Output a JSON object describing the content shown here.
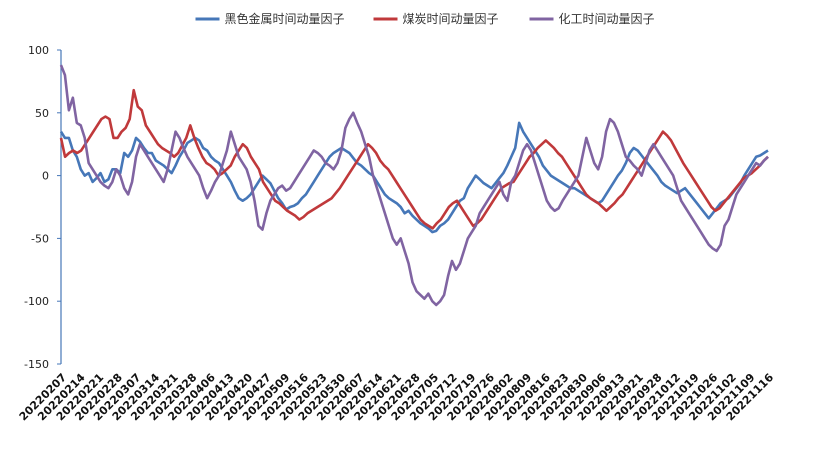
{
  "chart_data": {
    "type": "line",
    "title": "",
    "xlabel": "",
    "ylabel": "",
    "ylim": [
      -150,
      100
    ],
    "yticks": [
      -150,
      -100,
      -50,
      0,
      50,
      100
    ],
    "grid": false,
    "legend_position": "top-center",
    "x_tick_labels": [
      "20220207",
      "20220214",
      "20220221",
      "20220228",
      "20220307",
      "20220314",
      "20220321",
      "20220328",
      "20220406",
      "20220413",
      "20220420",
      "20220427",
      "20220509",
      "20220516",
      "20220523",
      "20220530",
      "20220607",
      "20220614",
      "20220621",
      "20220628",
      "20220705",
      "20220712",
      "20220719",
      "20220726",
      "20220802",
      "20220809",
      "20220816",
      "20220823",
      "20220830",
      "20220906",
      "20220913",
      "20220921",
      "20220928",
      "20221012",
      "20221019",
      "20221026",
      "20221102",
      "20221109",
      "20221116"
    ],
    "series": [
      {
        "name": "黑色金属时间动量因子",
        "color": "#4677b8",
        "values": [
          35,
          30,
          30,
          20,
          15,
          5,
          0,
          2,
          -5,
          -2,
          2,
          -5,
          -3,
          5,
          5,
          2,
          18,
          15,
          20,
          30,
          27,
          22,
          18,
          18,
          12,
          10,
          8,
          5,
          2,
          8,
          15,
          20,
          26,
          28,
          30,
          28,
          22,
          20,
          15,
          12,
          10,
          5,
          0,
          -5,
          -12,
          -18,
          -20,
          -18,
          -15,
          -10,
          -5,
          0,
          -3,
          -6,
          -12,
          -18,
          -22,
          -27,
          -25,
          -24,
          -22,
          -18,
          -15,
          -10,
          -5,
          0,
          5,
          10,
          15,
          18,
          20,
          22,
          20,
          18,
          14,
          10,
          8,
          5,
          2,
          0,
          -5,
          -10,
          -15,
          -18,
          -20,
          -22,
          -25,
          -30,
          -28,
          -32,
          -35,
          -38,
          -40,
          -42,
          -45,
          -44,
          -40,
          -38,
          -35,
          -30,
          -25,
          -20,
          -18,
          -10,
          -5,
          0,
          -3,
          -6,
          -8,
          -10,
          -6,
          -2,
          2,
          8,
          15,
          22,
          42,
          35,
          30,
          25,
          20,
          15,
          8,
          4,
          0,
          -2,
          -4,
          -6,
          -8,
          -10,
          -10,
          -12,
          -14,
          -16,
          -18,
          -20,
          -22,
          -20,
          -15,
          -10,
          -5,
          0,
          4,
          10,
          18,
          22,
          20,
          16,
          12,
          8,
          4,
          0,
          -5,
          -8,
          -10,
          -12,
          -14,
          -12,
          -10,
          -14,
          -18,
          -22,
          -26,
          -30,
          -34,
          -30,
          -26,
          -22,
          -20,
          -18,
          -14,
          -10,
          -6,
          0,
          5,
          10,
          15,
          16,
          18,
          20
        ]
      },
      {
        "name": "煤炭时间动量因子",
        "color": "#c0393b",
        "values": [
          30,
          15,
          18,
          20,
          18,
          20,
          25,
          30,
          35,
          40,
          45,
          47,
          45,
          30,
          30,
          35,
          38,
          45,
          68,
          55,
          52,
          40,
          35,
          30,
          25,
          22,
          20,
          18,
          15,
          18,
          24,
          30,
          40,
          30,
          22,
          15,
          10,
          8,
          5,
          0,
          2,
          5,
          8,
          15,
          20,
          25,
          22,
          15,
          10,
          5,
          -5,
          -10,
          -15,
          -20,
          -22,
          -25,
          -28,
          -30,
          -32,
          -35,
          -33,
          -30,
          -28,
          -26,
          -24,
          -22,
          -20,
          -18,
          -14,
          -10,
          -5,
          0,
          5,
          10,
          15,
          20,
          25,
          22,
          18,
          12,
          8,
          5,
          0,
          -5,
          -10,
          -15,
          -20,
          -25,
          -30,
          -35,
          -38,
          -40,
          -42,
          -38,
          -35,
          -30,
          -25,
          -22,
          -20,
          -25,
          -30,
          -35,
          -40,
          -38,
          -35,
          -30,
          -25,
          -20,
          -15,
          -10,
          -8,
          -6,
          -5,
          0,
          5,
          10,
          15,
          18,
          22,
          25,
          28,
          25,
          22,
          18,
          15,
          10,
          5,
          0,
          -5,
          -10,
          -15,
          -18,
          -20,
          -22,
          -25,
          -28,
          -25,
          -22,
          -18,
          -15,
          -10,
          -5,
          0,
          5,
          10,
          15,
          20,
          25,
          30,
          35,
          32,
          28,
          22,
          16,
          10,
          5,
          0,
          -5,
          -10,
          -15,
          -20,
          -25,
          -28,
          -26,
          -22,
          -18,
          -14,
          -10,
          -6,
          -2,
          0,
          2,
          5,
          8,
          12,
          15
        ]
      },
      {
        "name": "化工时间动量因子",
        "color": "#8064a2",
        "values": [
          88,
          80,
          52,
          62,
          42,
          40,
          30,
          10,
          5,
          0,
          -5,
          -8,
          -10,
          -5,
          5,
          0,
          -10,
          -15,
          -5,
          15,
          25,
          20,
          15,
          10,
          5,
          0,
          -5,
          5,
          20,
          35,
          30,
          22,
          15,
          10,
          5,
          0,
          -10,
          -18,
          -12,
          -5,
          0,
          10,
          20,
          35,
          25,
          15,
          10,
          5,
          -5,
          -20,
          -40,
          -43,
          -30,
          -20,
          -15,
          -10,
          -8,
          -12,
          -10,
          -5,
          0,
          5,
          10,
          15,
          20,
          18,
          15,
          10,
          8,
          5,
          10,
          20,
          38,
          45,
          50,
          42,
          35,
          25,
          15,
          0,
          -10,
          -20,
          -30,
          -40,
          -50,
          -55,
          -50,
          -60,
          -70,
          -85,
          -92,
          -95,
          -98,
          -94,
          -100,
          -103,
          -100,
          -95,
          -80,
          -68,
          -75,
          -70,
          -60,
          -50,
          -45,
          -40,
          -30,
          -25,
          -20,
          -15,
          -10,
          -5,
          -15,
          -20,
          -5,
          0,
          10,
          20,
          25,
          20,
          10,
          0,
          -10,
          -20,
          -25,
          -28,
          -26,
          -20,
          -15,
          -10,
          -5,
          0,
          15,
          30,
          20,
          10,
          5,
          15,
          35,
          45,
          42,
          35,
          25,
          15,
          12,
          8,
          5,
          0,
          10,
          20,
          25,
          20,
          15,
          10,
          5,
          0,
          -10,
          -20,
          -25,
          -30,
          -35,
          -40,
          -45,
          -50,
          -55,
          -58,
          -60,
          -55,
          -40,
          -35,
          -25,
          -15,
          -10,
          -5,
          0,
          5,
          10,
          8,
          12,
          15
        ]
      }
    ]
  }
}
